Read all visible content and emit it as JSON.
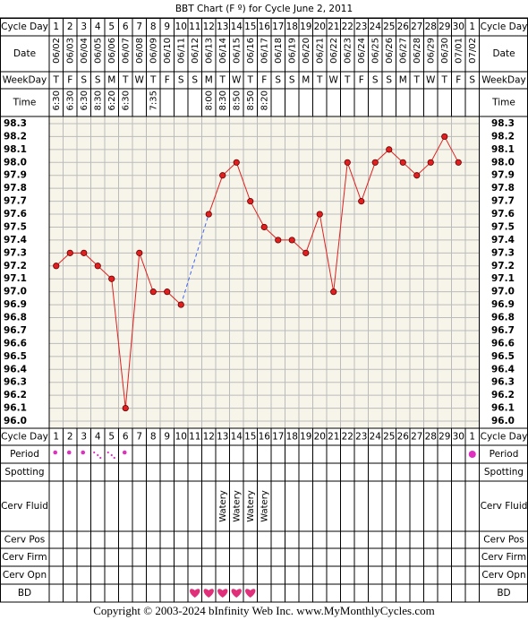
{
  "chart_data": {
    "type": "line",
    "title": "BBT Chart (F º) for Cycle June 2, 2011",
    "row_labels": [
      "Cycle Day",
      "Date",
      "WeekDay",
      "Time",
      "Period",
      "Spotting",
      "Cerv Fluid",
      "Cerv Pos",
      "Cerv Firm",
      "Cerv Opn",
      "BD"
    ],
    "categories": [
      1,
      2,
      3,
      4,
      5,
      6,
      7,
      8,
      9,
      10,
      11,
      12,
      13,
      14,
      15,
      16,
      17,
      18,
      19,
      20,
      21,
      22,
      23,
      24,
      25,
      26,
      27,
      28,
      29,
      30,
      1
    ],
    "dates": [
      "06/02",
      "06/03",
      "06/04",
      "06/05",
      "06/06",
      "06/07",
      "06/08",
      "06/09",
      "06/10",
      "06/11",
      "06/12",
      "06/13",
      "06/14",
      "06/15",
      "06/16",
      "06/17",
      "06/18",
      "06/19",
      "06/20",
      "06/21",
      "06/22",
      "06/23",
      "06/24",
      "06/25",
      "06/26",
      "06/27",
      "06/28",
      "06/29",
      "06/30",
      "07/01",
      "07/02"
    ],
    "weekdays": [
      "T",
      "F",
      "S",
      "S",
      "M",
      "T",
      "W",
      "T",
      "F",
      "S",
      "S",
      "M",
      "T",
      "W",
      "T",
      "F",
      "S",
      "S",
      "M",
      "T",
      "W",
      "T",
      "F",
      "S",
      "S",
      "M",
      "T",
      "W",
      "T",
      "F",
      "S"
    ],
    "times": [
      "6:30",
      "6:30",
      "6:30",
      "8:30",
      "6:20",
      "6:30",
      null,
      "7:35",
      null,
      null,
      null,
      "8:00",
      "8:30",
      "8:50",
      "8:50",
      "8:20",
      null,
      null,
      null,
      null,
      null,
      null,
      null,
      null,
      null,
      null,
      null,
      null,
      null,
      null,
      null
    ],
    "series": [
      {
        "color": "#e02020",
        "values": [
          97.2,
          97.3,
          97.3,
          97.2,
          97.1,
          96.1,
          97.3,
          97.0,
          97.0,
          96.9,
          null,
          97.6,
          97.9,
          98.0,
          97.7,
          97.5,
          97.4,
          97.4,
          97.3,
          97.6,
          97.0,
          98.0,
          97.7,
          98.0,
          98.1,
          98.0,
          97.9,
          98.0,
          98.2,
          98.0,
          null
        ]
      }
    ],
    "ylim": [
      96.0,
      98.3
    ],
    "yticks": [
      98.3,
      98.2,
      98.1,
      {
        "value": 98,
        "label": "98.0"
      },
      97.9,
      97.8,
      97.7,
      97.6,
      97.5,
      97.4,
      97.3,
      97.2,
      97.1,
      {
        "value": 97,
        "label": "97.0"
      },
      96.9,
      96.8,
      96.7,
      96.6,
      96.5,
      96.4,
      96.3,
      96.2,
      96.1,
      {
        "value": 96,
        "label": "96.0"
      }
    ],
    "grid": true,
    "cerv_fluid": [
      null,
      null,
      null,
      null,
      null,
      null,
      null,
      null,
      null,
      null,
      null,
      null,
      "Watery",
      "Watery",
      "Watery",
      "Watery",
      null,
      null,
      null,
      null,
      null,
      null,
      null,
      null,
      null,
      null,
      null,
      null,
      null,
      null,
      null
    ]
  },
  "footer": "Copyright © 2003-2024 bInfinity Web Inc.     www.MyMonthlyCycles.com"
}
